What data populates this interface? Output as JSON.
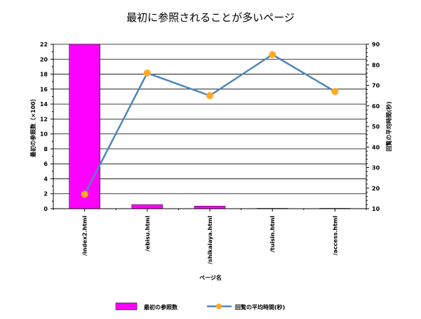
{
  "chart_data": {
    "type": "bar",
    "title": "最初に参照されることが多いページ",
    "xlabel": "ページ名",
    "categories": [
      "/index2.html",
      "/ebisu.html",
      "/shikaiaya.html",
      "/tuisin.html",
      "/access.html"
    ],
    "series": [
      {
        "name": "最初の参照数",
        "type": "bar",
        "axis": "left",
        "color": "#ff00ff",
        "values": [
          22,
          0.55,
          0.35,
          0.05,
          0.05
        ]
      },
      {
        "name": "回覧の平均時間(秒)",
        "type": "line",
        "axis": "right",
        "color": "#4f86b8",
        "marker_color": "#ffaa22",
        "values": [
          17,
          76,
          65,
          85,
          67
        ]
      }
    ],
    "y_left": {
      "label": "最初の参照数（×100）",
      "lim": [
        0,
        22
      ],
      "ticks": [
        "0",
        "2",
        "4",
        "6",
        "8",
        "10",
        "12",
        "14",
        "16",
        "18",
        "20",
        "22"
      ]
    },
    "y_right": {
      "label": "回覧の平均時間(秒)",
      "lim": [
        10,
        90
      ],
      "ticks": [
        "10",
        "20",
        "30",
        "40",
        "50",
        "60",
        "70",
        "80",
        "90"
      ]
    },
    "grid": true,
    "legend_position": "bottom"
  }
}
